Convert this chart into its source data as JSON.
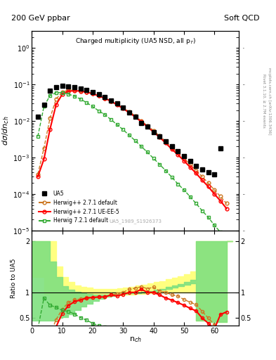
{
  "title_top_left": "200 GeV ppbar",
  "title_top_right": "Soft QCD",
  "plot_title": "Charged multiplicity (UA5 NSD, all p$_T$)",
  "ylabel_main": "dσ/dn_{ch}",
  "ylabel_ratio": "Ratio to UA5",
  "xlabel": "n_{ch}",
  "right_label_top": "Rivet 3.1.10, ≥ 2.7M events",
  "right_label_bot": "mcplots.cern.ch [arXiv:1306.3436]",
  "watermark": "UA5_1989_S1926373",
  "ua5_x": [
    2,
    4,
    6,
    8,
    10,
    12,
    14,
    16,
    18,
    20,
    22,
    24,
    26,
    28,
    30,
    32,
    34,
    36,
    38,
    40,
    42,
    44,
    46,
    48,
    50,
    52,
    54,
    56,
    58,
    60,
    62
  ],
  "ua5_y": [
    0.013,
    0.028,
    0.067,
    0.085,
    0.092,
    0.088,
    0.083,
    0.078,
    0.07,
    0.062,
    0.054,
    0.046,
    0.037,
    0.03,
    0.023,
    0.017,
    0.013,
    0.009,
    0.007,
    0.005,
    0.0038,
    0.0028,
    0.002,
    0.0015,
    0.0011,
    0.0008,
    0.00058,
    0.00048,
    0.0004,
    0.00035,
    0.0018
  ],
  "hdef_x": [
    2,
    4,
    6,
    8,
    10,
    12,
    14,
    16,
    18,
    20,
    22,
    24,
    26,
    28,
    30,
    32,
    34,
    36,
    38,
    40,
    42,
    44,
    46,
    48,
    50,
    52,
    54,
    56,
    58,
    60,
    62,
    64
  ],
  "hdef_y": [
    0.00035,
    0.0018,
    0.012,
    0.04,
    0.062,
    0.07,
    0.071,
    0.068,
    0.063,
    0.056,
    0.049,
    0.042,
    0.035,
    0.029,
    0.023,
    0.018,
    0.014,
    0.01,
    0.0075,
    0.0055,
    0.0039,
    0.0028,
    0.0019,
    0.0014,
    0.00095,
    0.00065,
    0.00044,
    0.0003,
    0.0002,
    0.00013,
    8.6e-05,
    5.5e-05
  ],
  "hue5_x": [
    2,
    4,
    6,
    8,
    10,
    12,
    14,
    16,
    18,
    20,
    22,
    24,
    26,
    28,
    30,
    32,
    34,
    36,
    38,
    40,
    42,
    44,
    46,
    48,
    50,
    52,
    54,
    56,
    58,
    60,
    62,
    64
  ],
  "hue5_y": [
    0.0003,
    0.0009,
    0.006,
    0.028,
    0.054,
    0.065,
    0.068,
    0.066,
    0.062,
    0.056,
    0.049,
    0.042,
    0.035,
    0.028,
    0.022,
    0.017,
    0.013,
    0.0095,
    0.007,
    0.005,
    0.0036,
    0.0025,
    0.0017,
    0.0012,
    0.00082,
    0.00055,
    0.00037,
    0.00024,
    0.00016,
    0.0001,
    6.5e-05,
    4e-05
  ],
  "h721_x": [
    2,
    4,
    6,
    8,
    10,
    12,
    14,
    16,
    18,
    20,
    22,
    24,
    26,
    28,
    30,
    32,
    34,
    36,
    38,
    40,
    42,
    44,
    46,
    48,
    50,
    52,
    54,
    56,
    58,
    60,
    62,
    64,
    66,
    68
  ],
  "h721_y": [
    0.0038,
    0.025,
    0.05,
    0.06,
    0.06,
    0.055,
    0.048,
    0.04,
    0.032,
    0.025,
    0.019,
    0.015,
    0.011,
    0.008,
    0.0058,
    0.0041,
    0.0029,
    0.002,
    0.0014,
    0.00095,
    0.00065,
    0.00044,
    0.00029,
    0.00019,
    0.00013,
    8.5e-05,
    5.5e-05,
    3.5e-05,
    2.3e-05,
    1.4e-05,
    9e-06,
    5.7e-06,
    3.6e-06,
    2.2e-06
  ],
  "r_hdef_x": [
    2,
    4,
    6,
    8,
    10,
    12,
    14,
    16,
    18,
    20,
    22,
    24,
    26,
    28,
    30,
    32,
    34,
    36,
    38,
    40,
    42,
    44,
    46,
    48,
    50,
    52,
    54,
    56,
    58,
    60,
    62,
    64
  ],
  "r_hdef_y": [
    0.027,
    0.064,
    0.18,
    0.47,
    0.67,
    0.8,
    0.86,
    0.87,
    0.9,
    0.9,
    0.91,
    0.91,
    0.95,
    0.97,
    1.0,
    1.06,
    1.08,
    1.11,
    1.07,
    1.1,
    1.03,
    1.0,
    0.95,
    0.93,
    0.86,
    0.81,
    0.76,
    0.63,
    0.5,
    0.37,
    0.25,
    0.16
  ],
  "r_hue5_x": [
    2,
    4,
    6,
    8,
    10,
    12,
    14,
    16,
    18,
    20,
    22,
    24,
    26,
    28,
    30,
    32,
    34,
    36,
    38,
    40,
    42,
    44,
    46,
    48,
    50,
    52,
    54,
    56,
    58,
    60,
    62,
    64
  ],
  "r_hue5_y": [
    0.023,
    0.032,
    0.09,
    0.33,
    0.59,
    0.74,
    0.82,
    0.85,
    0.89,
    0.9,
    0.91,
    0.91,
    0.95,
    0.93,
    0.96,
    1.0,
    1.0,
    1.06,
    1.0,
    1.0,
    0.95,
    0.89,
    0.85,
    0.8,
    0.75,
    0.69,
    0.64,
    0.5,
    0.4,
    0.29,
    0.57,
    0.62
  ],
  "r_h721_x": [
    2,
    4,
    6,
    8,
    10,
    12,
    14,
    16,
    18,
    20,
    22,
    24,
    26,
    28,
    30,
    32,
    34,
    36,
    38,
    40,
    42,
    44,
    46,
    48,
    50,
    52,
    54,
    56,
    58,
    60,
    62,
    64,
    66,
    68
  ],
  "r_h721_y": [
    0.29,
    0.89,
    0.75,
    0.71,
    0.65,
    0.63,
    0.58,
    0.51,
    0.46,
    0.4,
    0.35,
    0.33,
    0.3,
    0.27,
    0.25,
    0.24,
    0.22,
    0.22,
    0.2,
    0.19,
    0.17,
    0.16,
    0.15,
    0.13,
    0.12,
    0.11,
    0.095,
    0.073,
    0.058,
    0.04,
    0.025,
    0.016,
    0.01,
    0.006
  ],
  "ylim_main": [
    1e-05,
    3.0
  ],
  "xlim": [
    0,
    68
  ],
  "ylim_ratio": [
    0.35,
    2.2
  ],
  "yticks_ratio": [
    0.5,
    1.0,
    2.0
  ],
  "ytick_labels_ratio": [
    "0.5",
    "1",
    "2"
  ]
}
